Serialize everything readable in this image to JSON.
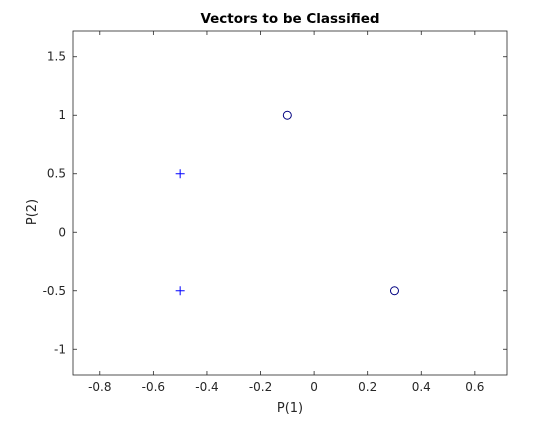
{
  "chart_data": {
    "type": "scatter",
    "title": "Vectors to be Classified",
    "xlabel": "P(1)",
    "ylabel": "P(2)",
    "xlim": [
      -0.9,
      0.72
    ],
    "ylim": [
      -1.22,
      1.72
    ],
    "xticks": [
      -0.8,
      -0.6,
      -0.4,
      -0.2,
      0,
      0.2,
      0.4,
      0.6
    ],
    "xtick_labels": [
      "-0.8",
      "-0.6",
      "-0.4",
      "-0.2",
      "0",
      "0.2",
      "0.4",
      "0.6"
    ],
    "yticks": [
      -1,
      -0.5,
      0,
      0.5,
      1,
      1.5
    ],
    "ytick_labels": [
      "-1",
      "-0.5",
      "0",
      "0.5",
      "1",
      "1.5"
    ],
    "grid": false,
    "series": [
      {
        "marker": "plus",
        "color": "#0000ff",
        "points": [
          [
            -0.5,
            0.5
          ],
          [
            -0.5,
            -0.5
          ]
        ]
      },
      {
        "marker": "circle",
        "color": "#000080",
        "points": [
          [
            -0.1,
            1.0
          ],
          [
            0.3,
            -0.5
          ]
        ]
      }
    ]
  }
}
